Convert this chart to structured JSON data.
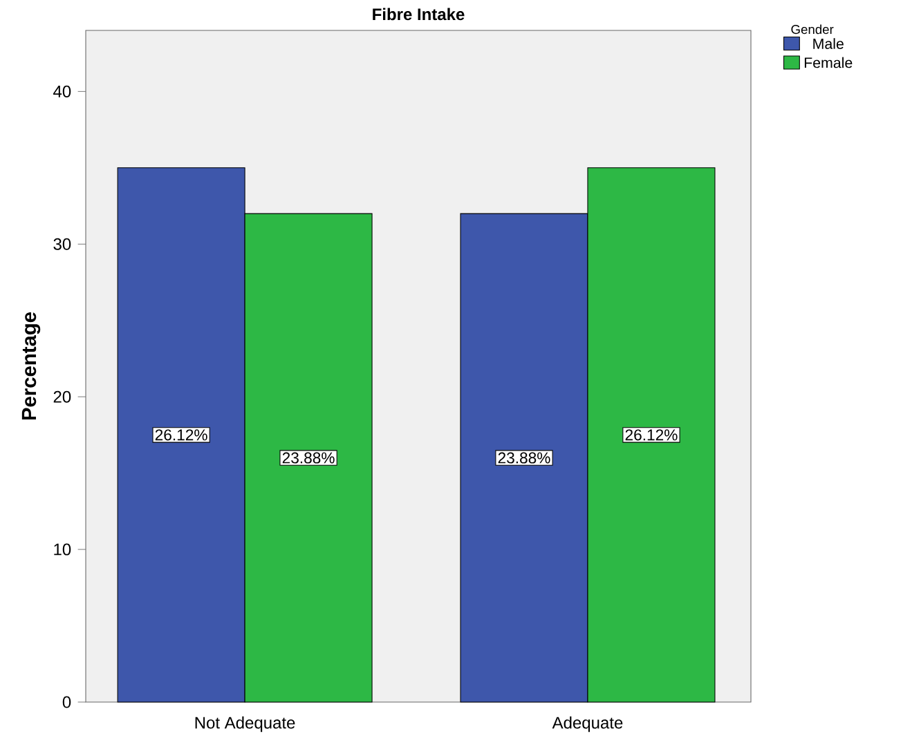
{
  "chart_data": {
    "type": "bar",
    "title": "Fibre Intake",
    "ylabel": "Percentage",
    "legend_title": "Gender",
    "categories": [
      "Not Adequate",
      "Adequate"
    ],
    "series": [
      {
        "name": "Male",
        "color": "#3e57ab",
        "values": [
          35,
          32
        ]
      },
      {
        "name": "Female",
        "color": "#2db845",
        "values": [
          32,
          35
        ]
      }
    ],
    "annotations": [
      {
        "text": "26.12%",
        "x": "Not Adequate",
        "y": 17.5
      },
      {
        "text": "23.88%",
        "x": "Not Adequate",
        "y": 16
      },
      {
        "text": "23.88%",
        "x": "Adequate",
        "y": 16
      },
      {
        "text": "26.12%",
        "x": "Adequate",
        "y": 17.5
      }
    ],
    "ylim": [
      0,
      44
    ],
    "yticks": [
      0,
      10,
      20,
      30,
      40
    ],
    "grid": false,
    "legend": "top right"
  }
}
